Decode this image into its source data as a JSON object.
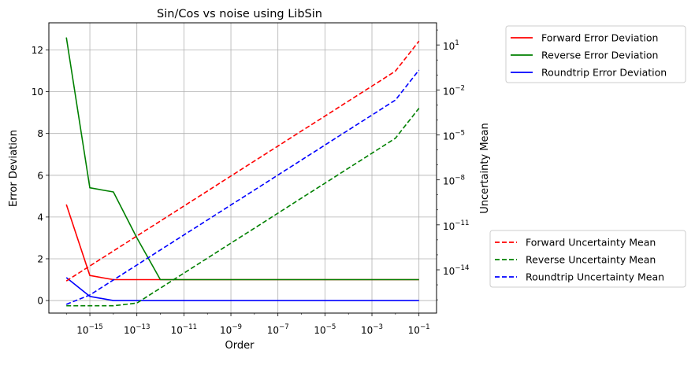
{
  "chart_data": {
    "type": "line",
    "title": "Sin/Cos vs noise using LibSin",
    "xlabel": "Order",
    "ylabel": "Error Deviation",
    "ylabel_right": "Uncertainty Mean",
    "x_scale": "log",
    "y_right_scale": "log",
    "grid": true,
    "x": [
      1e-16,
      1e-15,
      1e-14,
      1e-13,
      1e-12,
      1e-11,
      1e-10,
      1e-09,
      1e-08,
      1e-07,
      1e-06,
      1e-05,
      0.0001,
      0.001,
      0.01,
      0.1
    ],
    "xlim": [
      1.8e-17,
      0.56
    ],
    "ylim": [
      -0.6,
      13.3
    ],
    "ylim_right": [
      1.3e-17,
      300
    ],
    "x_ticks": [
      {
        "value": 1e-15,
        "base": "10",
        "exp": "−15"
      },
      {
        "value": 1e-13,
        "base": "10",
        "exp": "−13"
      },
      {
        "value": 1e-11,
        "base": "10",
        "exp": "−11"
      },
      {
        "value": 1e-09,
        "base": "10",
        "exp": "−9"
      },
      {
        "value": 1e-07,
        "base": "10",
        "exp": "−7"
      },
      {
        "value": 1e-05,
        "base": "10",
        "exp": "−5"
      },
      {
        "value": 0.001,
        "base": "10",
        "exp": "−3"
      },
      {
        "value": 0.1,
        "base": "10",
        "exp": "−1"
      }
    ],
    "y_ticks": [
      "0",
      "2",
      "4",
      "6",
      "8",
      "10",
      "12"
    ],
    "y_right_ticks": [
      {
        "value": 1e-14,
        "base": "10",
        "exp": "−14"
      },
      {
        "value": 1e-11,
        "base": "10",
        "exp": "−11"
      },
      {
        "value": 1e-08,
        "base": "10",
        "exp": "−8"
      },
      {
        "value": 1e-05,
        "base": "10",
        "exp": "−5"
      },
      {
        "value": 0.01,
        "base": "10",
        "exp": "−2"
      },
      {
        "value": 10,
        "base": "10",
        "exp": "1"
      }
    ],
    "series": [
      {
        "name": "Forward Error Deviation",
        "axis": "left",
        "style": "solid",
        "color": "#ff0000",
        "values": [
          4.6,
          1.2,
          1.0,
          1.0,
          1.0,
          1.0,
          1.0,
          1.0,
          1.0,
          1.0,
          1.0,
          1.0,
          1.0,
          1.0,
          1.0,
          1.0
        ]
      },
      {
        "name": "Reverse Error Deviation",
        "axis": "left",
        "style": "solid",
        "color": "#008000",
        "values": [
          12.6,
          5.4,
          5.2,
          3.0,
          1.0,
          1.0,
          1.0,
          1.0,
          1.0,
          1.0,
          1.0,
          1.0,
          1.0,
          1.0,
          1.0,
          1.0
        ]
      },
      {
        "name": "Roundtrip Error Deviation",
        "axis": "left",
        "style": "solid",
        "color": "#0000ff",
        "values": [
          1.1,
          0.2,
          0.0,
          0.0,
          0.0,
          0.0,
          0.0,
          0.0,
          0.0,
          0.0,
          0.0,
          0.0,
          0.0,
          0.0,
          0.0,
          0.0
        ]
      },
      {
        "name": "Forward Uncertainty Mean",
        "axis": "right",
        "style": "dashed",
        "color": "#ff0000",
        "values": [
          1.8e-15,
          1.8e-14,
          1.8e-13,
          1.8e-12,
          1.8e-11,
          1.8e-10,
          1.8e-09,
          1.8e-08,
          1.8e-07,
          1.8e-06,
          1.8e-05,
          0.00018,
          0.0018,
          0.018,
          0.18,
          18.0
        ]
      },
      {
        "name": "Reverse Uncertainty Mean",
        "axis": "right",
        "style": "dashed",
        "color": "#008000",
        "values": [
          4e-17,
          4e-17,
          4e-17,
          6e-17,
          6e-16,
          6e-15,
          6e-14,
          6e-13,
          6e-12,
          6e-11,
          6e-10,
          6e-09,
          6e-08,
          6e-07,
          6e-06,
          0.0006
        ]
      },
      {
        "name": "Roundtrip Uncertainty Mean",
        "axis": "right",
        "style": "dashed",
        "color": "#0000ff",
        "values": [
          5e-17,
          2.1e-16,
          2.1e-15,
          2.1e-14,
          2.1e-13,
          2.1e-12,
          2.1e-11,
          2.1e-10,
          2.1e-09,
          2.1e-08,
          2.1e-07,
          2.1e-06,
          2.1e-05,
          0.00021,
          0.0021,
          0.21
        ]
      }
    ],
    "legends": [
      {
        "placement": "outside top-right",
        "entries": [
          "Forward Error Deviation",
          "Reverse Error Deviation",
          "Roundtrip Error Deviation"
        ]
      },
      {
        "placement": "outside bottom-right",
        "entries": [
          "Forward Uncertainty Mean",
          "Reverse Uncertainty Mean",
          "Roundtrip Uncertainty Mean"
        ]
      }
    ]
  }
}
